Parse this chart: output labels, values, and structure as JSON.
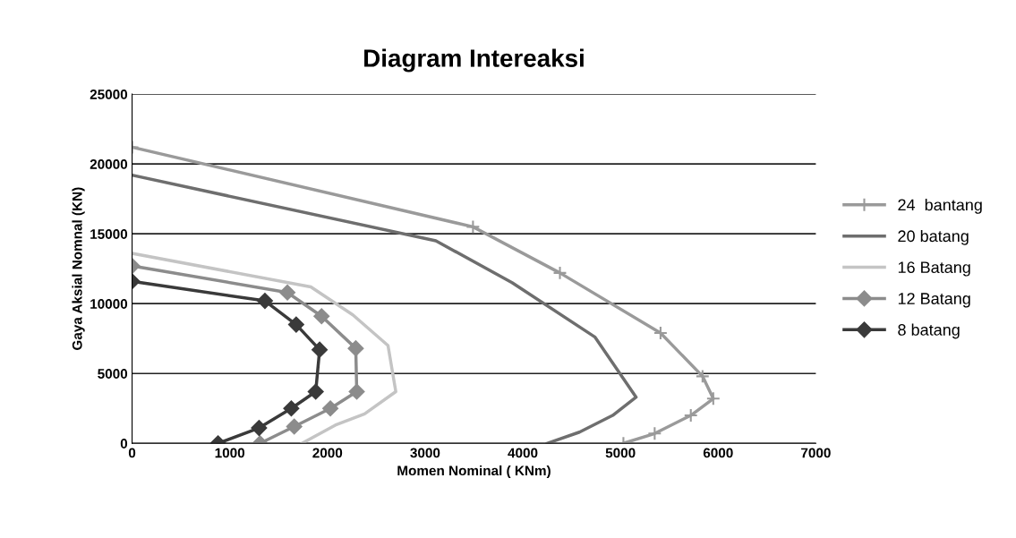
{
  "chart_data": {
    "type": "line",
    "title": "Diagram Intereaksi",
    "xlabel": "Momen Nominal ( KNm)",
    "ylabel": "Gaya Aksial Nomnal (KN)",
    "xlim": [
      0,
      7000
    ],
    "xticks": [
      0,
      1000,
      2000,
      3000,
      4000,
      5000,
      6000,
      7000
    ],
    "ylim": [
      0,
      25000
    ],
    "yticks": [
      0,
      5000,
      10000,
      15000,
      20000,
      25000
    ],
    "grid": "y",
    "legend": "right",
    "line_style": "solid",
    "series": [
      {
        "name": "24  bantang",
        "color": "#9a9a9a",
        "marker": "cross",
        "x": [
          0,
          3490,
          4380,
          5410,
          5840,
          5950,
          5720,
          5350,
          5030
        ],
        "values": [
          21200,
          15500,
          12200,
          7900,
          4800,
          3200,
          2000,
          700,
          0
        ]
      },
      {
        "name": "20 batang",
        "color": "#6e6e6e",
        "marker": "none",
        "x": [
          0,
          3110,
          3890,
          4740,
          5160,
          4920,
          4580,
          4250
        ],
        "values": [
          19200,
          14500,
          11500,
          7600,
          3300,
          2000,
          800,
          0
        ]
      },
      {
        "name": "16 Batang",
        "color": "#c4c4c4",
        "marker": "none",
        "x": [
          0,
          1830,
          2260,
          2620,
          2700,
          2380,
          2080,
          1740
        ],
        "values": [
          13600,
          11200,
          9200,
          7000,
          3700,
          2100,
          1300,
          0
        ]
      },
      {
        "name": "12 Batang",
        "color": "#8c8c8c",
        "marker": "diamond",
        "x": [
          0,
          1590,
          1940,
          2290,
          2300,
          2030,
          1660,
          1310
        ],
        "values": [
          12700,
          10800,
          9100,
          6800,
          3700,
          2500,
          1200,
          0
        ]
      },
      {
        "name": "8 batang",
        "color": "#3a3a3a",
        "marker": "diamond",
        "x": [
          0,
          1360,
          1680,
          1920,
          1880,
          1630,
          1300,
          880
        ],
        "values": [
          11600,
          10200,
          8500,
          6700,
          3700,
          2500,
          1100,
          0
        ]
      }
    ]
  }
}
